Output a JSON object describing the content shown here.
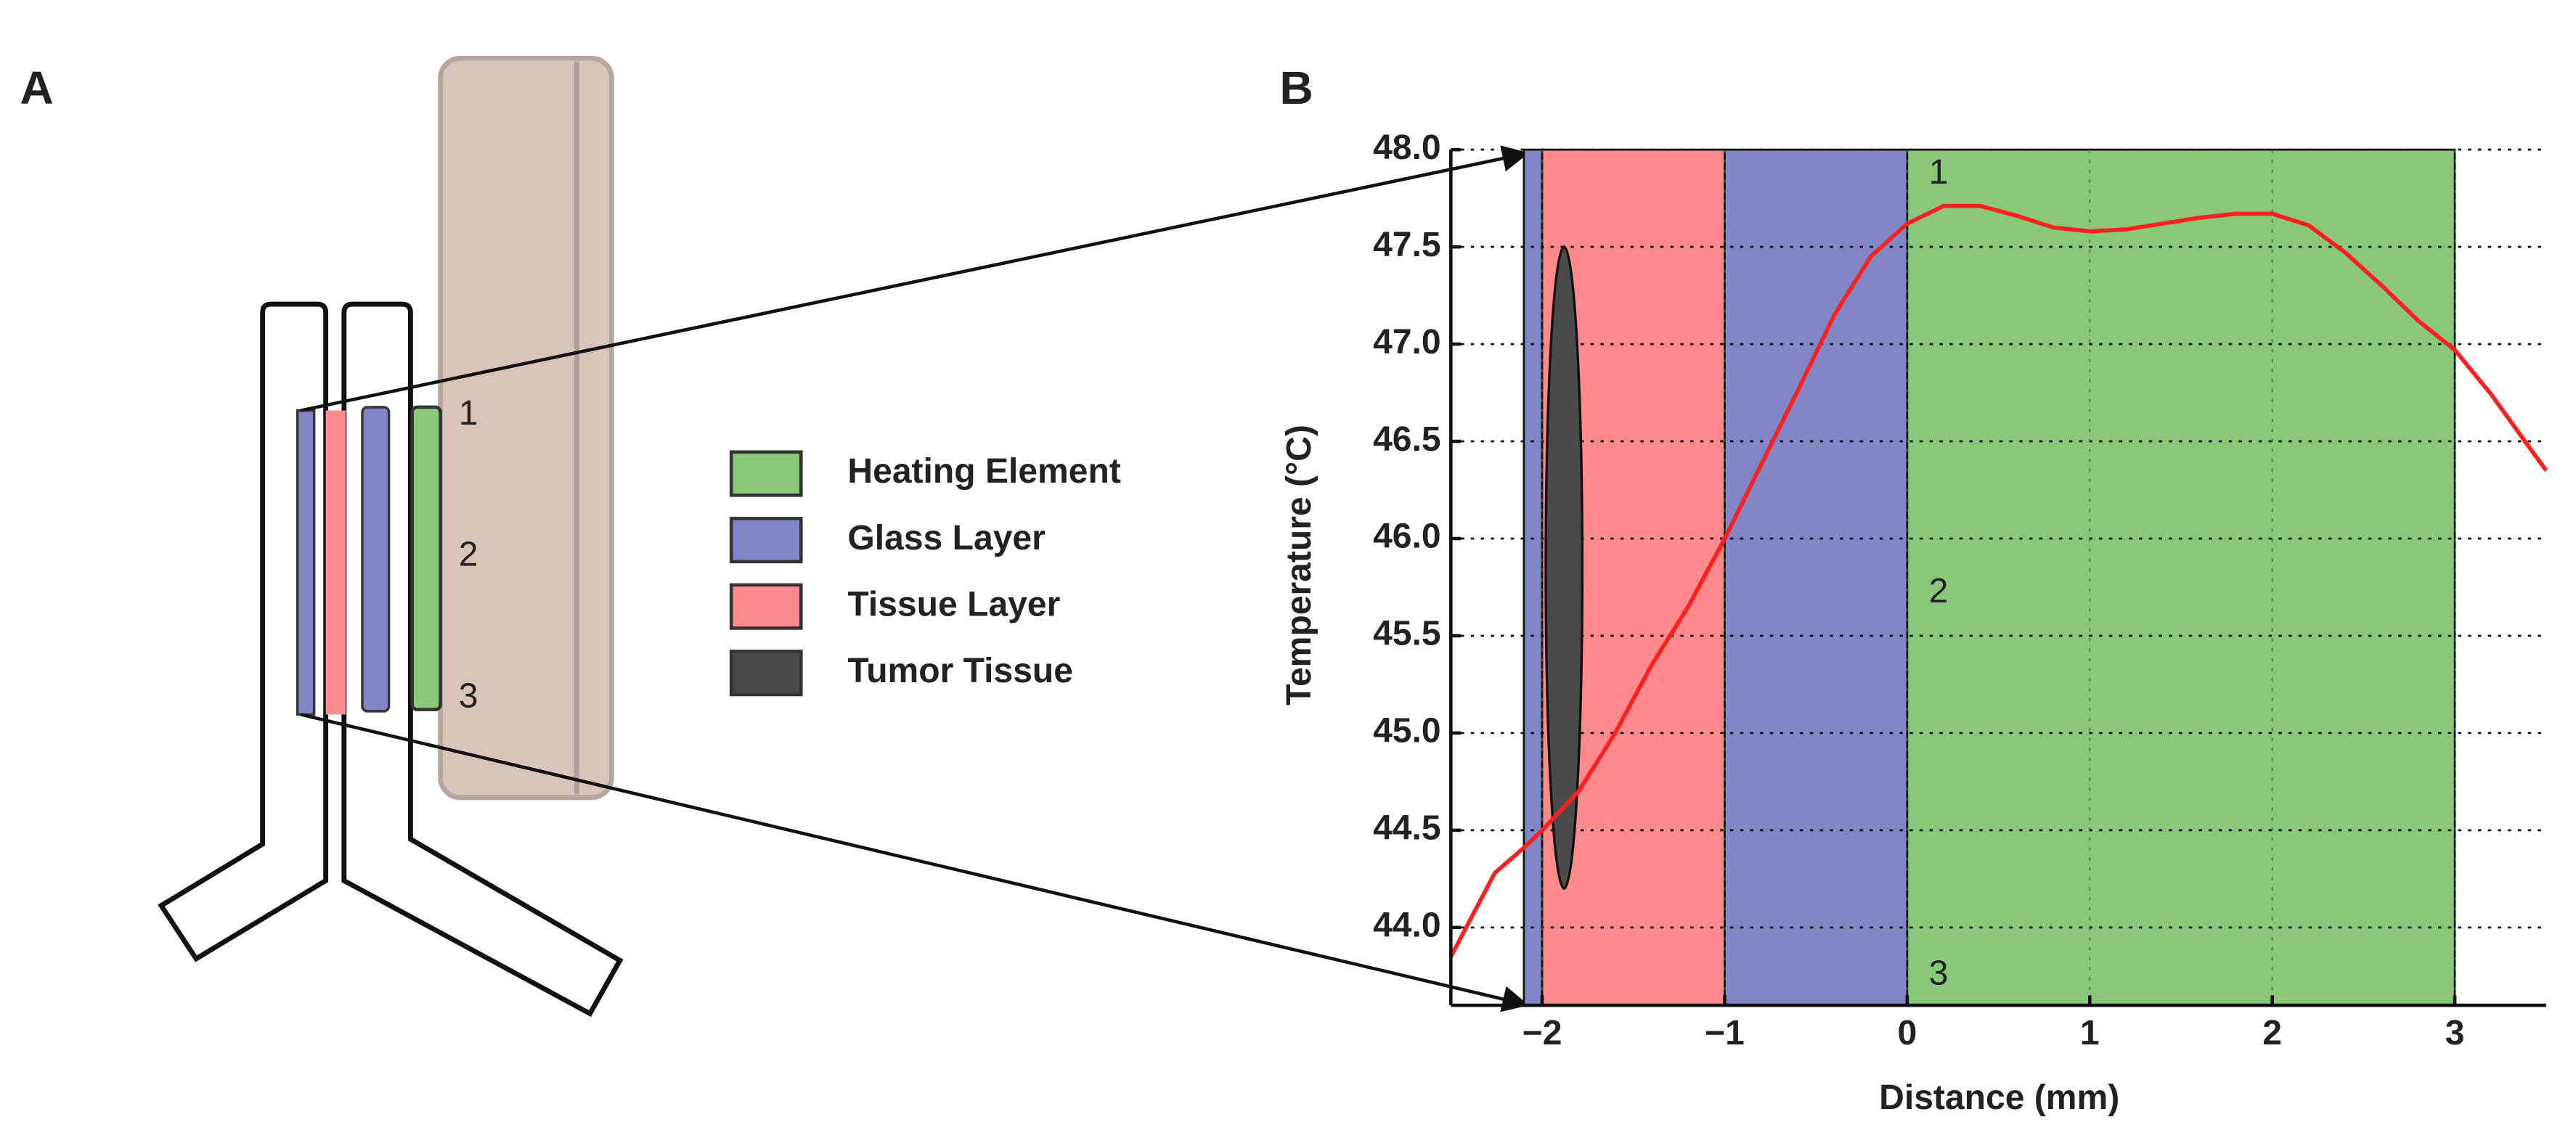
{
  "panel_a": {
    "label": "A",
    "markers": [
      "1",
      "2",
      "3"
    ]
  },
  "legend": [
    {
      "name": "Heating Element",
      "color": "#88c878"
    },
    {
      "name": "Glass Layer",
      "color": "#8086c6"
    },
    {
      "name": "Tissue Layer",
      "color": "#ff8a8e"
    },
    {
      "name": "Tumor Tissue",
      "color": "#4a4a4a"
    }
  ],
  "chart_data": {
    "type": "line",
    "label": "B",
    "xlabel": "Distance (mm)",
    "ylabel": "Temperature (°C)",
    "xlim": [
      -2.5,
      3.5
    ],
    "ylim": [
      43.6,
      48.0
    ],
    "xticks": [
      {
        "value": -2,
        "label": "−2"
      },
      {
        "value": -1,
        "label": "−1"
      },
      0,
      1,
      2,
      3
    ],
    "yticks": [
      {
        "value": 44,
        "label": "44.0"
      },
      44.5,
      {
        "value": 45,
        "label": "45.0"
      },
      45.5,
      {
        "value": 46,
        "label": "46.0"
      },
      46.5,
      {
        "value": 47,
        "label": "47.0"
      },
      47.5,
      {
        "value": 48,
        "label": "48.0"
      }
    ],
    "grid": true,
    "regions": [
      {
        "x": [
          -2.1,
          -2.0
        ],
        "color": "#8086c6"
      },
      {
        "x": [
          -2.0,
          -1.0
        ],
        "color": "#ff8a8e"
      },
      {
        "x": [
          -1.0,
          0
        ],
        "color": "#8086c6"
      },
      {
        "x": [
          0,
          3.0
        ],
        "color": "#88c878"
      }
    ],
    "tumor": {
      "x": -1.88,
      "width": 0.2,
      "y_range": [
        44.2,
        47.5
      ],
      "color": "#4a4a4a"
    },
    "annotations": [
      "1",
      "2",
      "3"
    ],
    "color": "#ff2020",
    "x": [
      -2.5,
      -2.26,
      -2.1,
      -2.0,
      -1.8,
      -1.6,
      -1.4,
      -1.2,
      -1.0,
      -0.8,
      -0.6,
      -0.4,
      -0.2,
      0,
      0.2,
      0.4,
      0.6,
      0.8,
      1.0,
      1.2,
      1.4,
      1.6,
      1.8,
      2.0,
      2.2,
      2.4,
      2.6,
      2.8,
      3.0,
      3.2,
      3.4,
      3.5
    ],
    "values": [
      43.85,
      44.28,
      44.41,
      44.5,
      44.7,
      45.0,
      45.35,
      45.65,
      46.0,
      46.38,
      46.76,
      47.15,
      47.45,
      47.62,
      47.71,
      47.71,
      47.66,
      47.6,
      47.58,
      47.59,
      47.62,
      47.65,
      47.67,
      47.67,
      47.61,
      47.47,
      47.3,
      47.12,
      46.97,
      46.74,
      46.48,
      46.35
    ]
  }
}
